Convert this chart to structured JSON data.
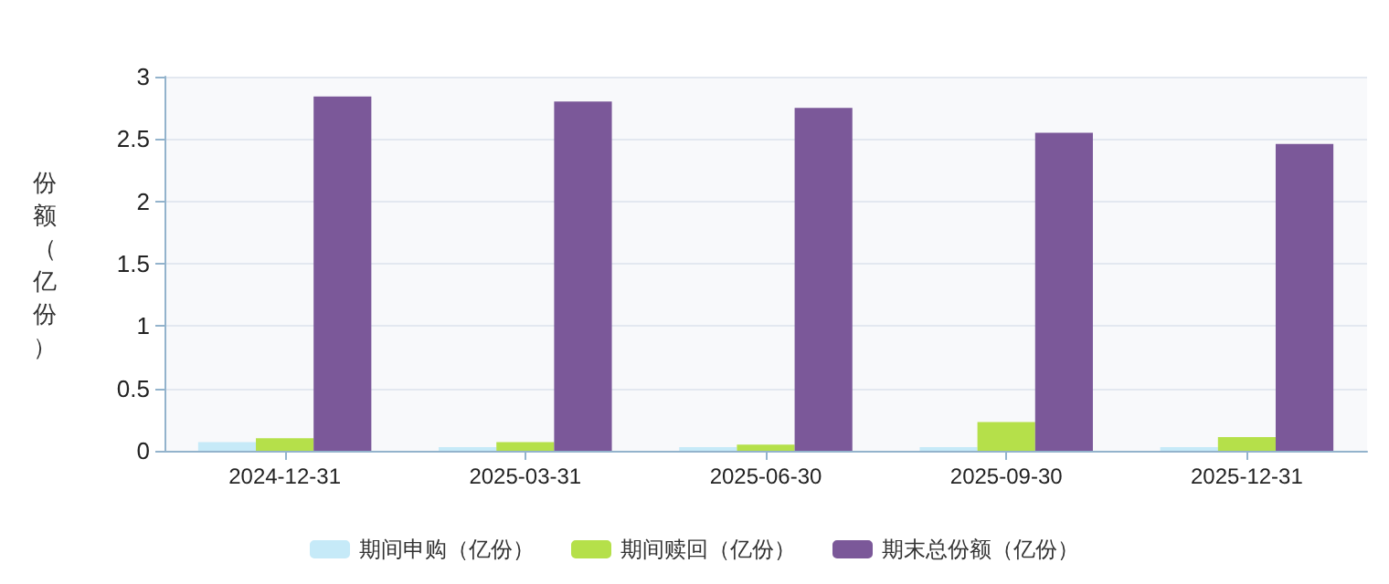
{
  "chart_data": {
    "type": "bar",
    "ylabel": "份额（亿份）",
    "categories": [
      "2024-12-31",
      "2025-03-31",
      "2025-06-30",
      "2025-09-30",
      "2025-12-31"
    ],
    "series": [
      {
        "name": "期间申购（亿份）",
        "color": "#c6eaf8",
        "values": [
          0.07,
          0.03,
          0.03,
          0.03,
          0.03
        ]
      },
      {
        "name": "期间赎回（亿份）",
        "color": "#b5e04a",
        "values": [
          0.1,
          0.07,
          0.05,
          0.23,
          0.11
        ]
      },
      {
        "name": "期末总份额（亿份）",
        "color": "#7b5899",
        "values": [
          2.84,
          2.8,
          2.75,
          2.55,
          2.46
        ]
      }
    ],
    "ylim": [
      0,
      3
    ],
    "yticks": [
      0,
      0.5,
      1,
      1.5,
      2,
      2.5,
      3
    ],
    "grid": "y",
    "legend": "bottom"
  }
}
